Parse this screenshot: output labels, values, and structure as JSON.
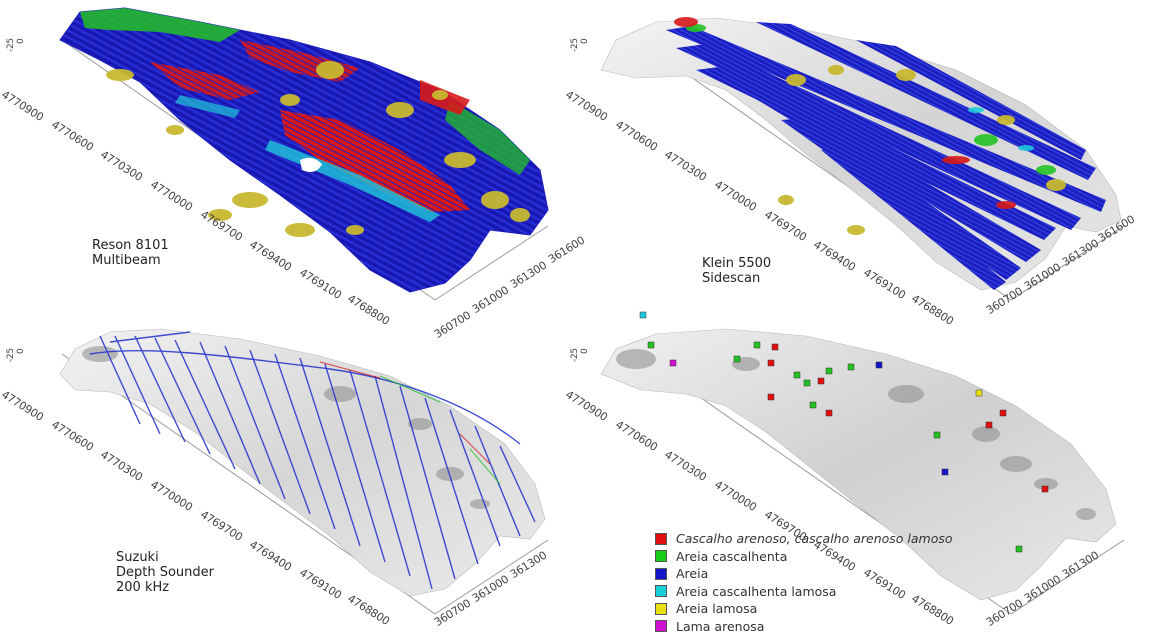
{
  "panels": [
    {
      "id": "multibeam",
      "caption": [
        "Reson 8101",
        "Multibeam"
      ],
      "z_ticks": [
        "-25",
        "0"
      ],
      "y_ticks": [
        "4770900",
        "4770600",
        "4770300",
        "4770000",
        "4769700",
        "4769400",
        "4769100",
        "4768800"
      ],
      "x_ticks": [
        "360700",
        "361000",
        "361300",
        "361600"
      ]
    },
    {
      "id": "sidescan",
      "caption": [
        "Klein 5500",
        "Sidescan"
      ],
      "z_ticks": [
        "-25",
        "0"
      ],
      "y_ticks": [
        "4770900",
        "4770600",
        "4770300",
        "4770000",
        "4769700",
        "4769400",
        "4769100",
        "4768800"
      ],
      "x_ticks": [
        "360700",
        "361000",
        "361300",
        "361600"
      ]
    },
    {
      "id": "depth-sounder",
      "caption": [
        "Suzuki",
        "Depth Sounder",
        "200 kHz"
      ],
      "z_ticks": [
        "-25",
        "0"
      ],
      "y_ticks": [
        "4770900",
        "4770600",
        "4770300",
        "4770000",
        "4769700",
        "4769400",
        "4769100",
        "4768800"
      ],
      "x_ticks": [
        "360700",
        "361000",
        "361300"
      ]
    },
    {
      "id": "samples",
      "caption": [],
      "z_ticks": [
        "-25",
        "0"
      ],
      "y_ticks": [
        "4770900",
        "4770600",
        "4770300",
        "4770000",
        "4769700",
        "4769400",
        "4769100",
        "4768800"
      ],
      "x_ticks": [
        "360700",
        "361000",
        "361300"
      ]
    }
  ],
  "legend": [
    {
      "label": "Cascalho arenoso, cascalho arenoso lamoso",
      "color": "#e01010"
    },
    {
      "label": "Areia cascalhenta",
      "color": "#18cc18"
    },
    {
      "label": "Areia",
      "color": "#1414c8"
    },
    {
      "label": "Areia cascalhenta lamosa",
      "color": "#18d0d8"
    },
    {
      "label": "Areia lamosa",
      "color": "#e8e010"
    },
    {
      "label": "Lama arenosa",
      "color": "#d010d0"
    }
  ],
  "colors": {
    "relief_light": "#eeeeee",
    "relief_mid": "#c8c8c8",
    "relief_dark": "#8a8a8a",
    "multibeam_blue": "#1e1ec0",
    "track_blue": "#2a3ad0",
    "axis": "#999999"
  }
}
